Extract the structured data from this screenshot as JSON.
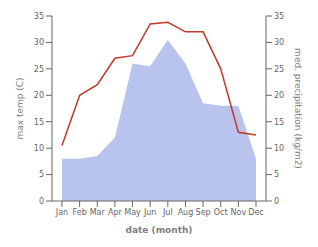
{
  "chart_data": {
    "type": "combo",
    "xlabel": "date (month)",
    "ylabel": "max temp (C)",
    "y2label": "med. precipitation (kg/m2)",
    "categories": [
      "Jan",
      "Feb",
      "Mar",
      "Apr",
      "May",
      "Jun",
      "Jul",
      "Aug",
      "Sep",
      "Oct",
      "Nov",
      "Dec"
    ],
    "series": [
      {
        "type": "area",
        "color": "#b8c4ee",
        "values": [
          8.0,
          8.0,
          8.5,
          12.0,
          26.0,
          25.5,
          30.5,
          26.0,
          18.5,
          18.0,
          18.0,
          8.0
        ]
      },
      {
        "type": "line",
        "color": "#c0392b",
        "axis": "y2",
        "values": [
          10.5,
          20.0,
          22.0,
          27.0,
          27.5,
          33.5,
          33.8,
          32.0,
          32.0,
          25.0,
          13.0,
          12.5
        ]
      }
    ],
    "ylim": [
      0,
      35
    ],
    "yticks": [
      0,
      5,
      10,
      15,
      20,
      25,
      30,
      35
    ],
    "y2lim": [
      0,
      35
    ],
    "y2ticks": [
      0,
      5,
      10,
      15,
      20,
      25,
      30,
      35
    ],
    "grid": false
  }
}
